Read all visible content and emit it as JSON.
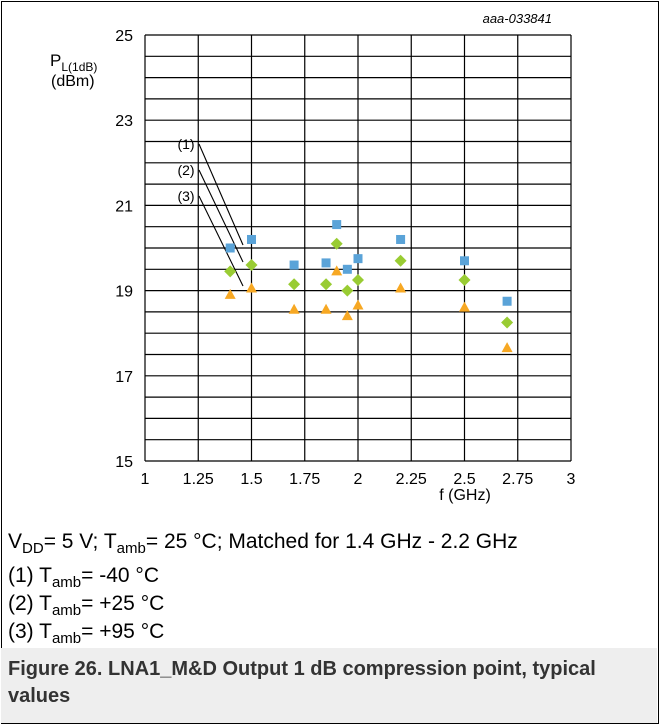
{
  "chart_data": {
    "type": "scatter",
    "id_label": "aaa-033841",
    "ylabel": {
      "main": "P",
      "sub": "L(1dB)",
      "unit": "(dBm)"
    },
    "xlabel": "f (GHz)",
    "xlim": [
      1,
      3
    ],
    "ylim": [
      15,
      25
    ],
    "x_ticks": [
      "1",
      "1.25",
      "1.5",
      "1.75",
      "2",
      "2.25",
      "2.5",
      "2.75",
      "3"
    ],
    "y_ticks": [
      "15",
      "17",
      "19",
      "21",
      "23",
      "25"
    ],
    "grid": true,
    "series": [
      {
        "marker": "square",
        "color": "#5aa3d8",
        "x": [
          1.4,
          1.5,
          1.7,
          1.85,
          1.9,
          1.95,
          2.0,
          2.2,
          2.5,
          2.7
        ],
        "y": [
          20.0,
          20.2,
          19.6,
          19.65,
          20.55,
          19.5,
          19.75,
          20.2,
          19.7,
          18.75
        ]
      },
      {
        "marker": "diamond",
        "color": "#99cc33",
        "x": [
          1.4,
          1.5,
          1.7,
          1.85,
          1.9,
          1.95,
          2.0,
          2.2,
          2.5,
          2.7
        ],
        "y": [
          19.45,
          19.6,
          19.15,
          19.15,
          20.1,
          19.0,
          19.25,
          19.7,
          19.25,
          18.25
        ]
      },
      {
        "marker": "triangle",
        "color": "#f7a823",
        "x": [
          1.4,
          1.5,
          1.7,
          1.85,
          1.9,
          1.95,
          2.0,
          2.2,
          2.5,
          2.7
        ],
        "y": [
          18.9,
          19.05,
          18.55,
          18.55,
          19.45,
          18.4,
          18.65,
          19.05,
          18.6,
          17.65
        ]
      }
    ],
    "callouts": [
      "(1)",
      "(2)",
      "(3)"
    ]
  },
  "conditions": {
    "line1": {
      "v": "V",
      "v_sub": "DD",
      "a": "= 5 V; T",
      "a_sub": "amb",
      "b": "= 25 °C; Matched for 1.4 GHz - 2.2 GHz"
    },
    "line2": {
      "pre": "(1) T",
      "sub": "amb",
      "post": "= -40 °C"
    },
    "line3": {
      "pre": "(2) T",
      "sub": "amb",
      "post": "= +25 °C"
    },
    "line4": {
      "pre": "(3) T",
      "sub": "amb",
      "post": "= +95 °C"
    }
  },
  "caption": "Figure 26. LNA1_M&D Output 1 dB compression point, typical values"
}
